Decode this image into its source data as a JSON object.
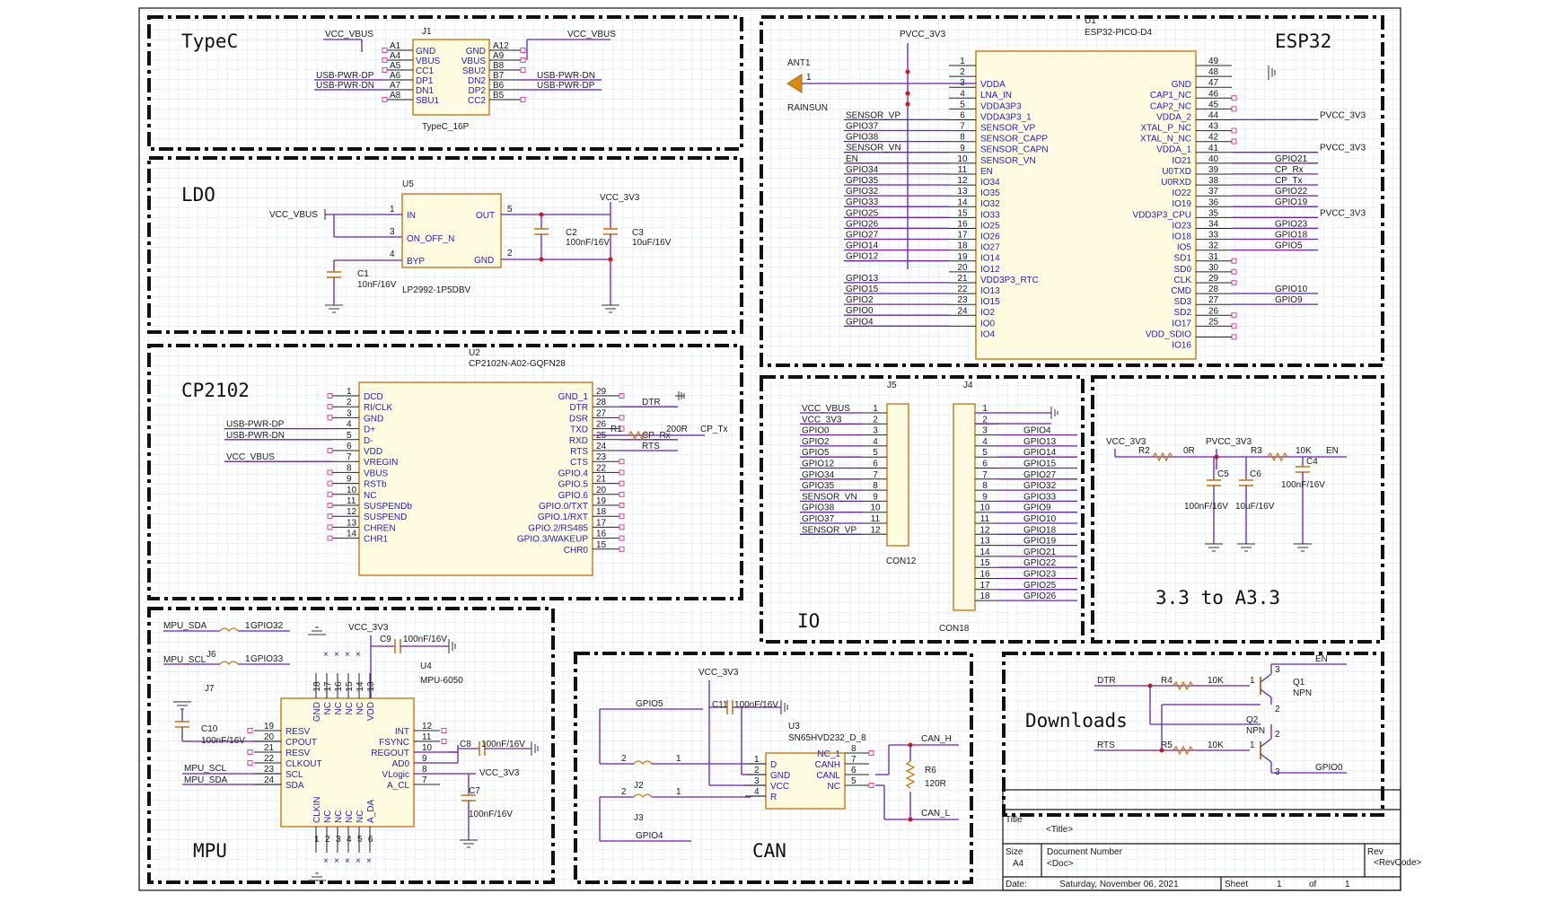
{
  "sections": {
    "typec": "TypeC",
    "ldo": "LDO",
    "cp2102": "CP2102",
    "esp32": "ESP32",
    "io": "IO",
    "mpu": "MPU",
    "can": "CAN",
    "downloads": "Downloads",
    "a33": "3.3 to A3.3"
  },
  "typec": {
    "ref": "J1",
    "part": "TypeC_16P",
    "net_vbus_left": "VCC_VBUS",
    "net_vbus_right": "VCC_VBUS",
    "left_pins": [
      {
        "num": "A1",
        "name": "GND",
        "net": ""
      },
      {
        "num": "A4",
        "name": "VBUS",
        "net": ""
      },
      {
        "num": "A5",
        "name": "CC1",
        "net": ""
      },
      {
        "num": "A6",
        "name": "DP1",
        "net": "USB-PWR-DP"
      },
      {
        "num": "A7",
        "name": "DN1",
        "net": "USB-PWR-DN"
      },
      {
        "num": "A8",
        "name": "SBU1",
        "net": ""
      }
    ],
    "right_pins": [
      {
        "num": "A12",
        "name": "GND",
        "net": ""
      },
      {
        "num": "A9",
        "name": "VBUS",
        "net": ""
      },
      {
        "num": "B8",
        "name": "SBU2",
        "net": ""
      },
      {
        "num": "B7",
        "name": "DN2",
        "net": "USB-PWR-DN"
      },
      {
        "num": "B6",
        "name": "DP2",
        "net": "USB-PWR-DP"
      },
      {
        "num": "B5",
        "name": "CC2",
        "net": ""
      }
    ]
  },
  "ldo": {
    "ref": "U5",
    "part": "LP2992-1P5DBV",
    "in_net": "VCC_VBUS",
    "out_net": "VCC_3V3",
    "pins": [
      {
        "num": "1",
        "name": "IN"
      },
      {
        "num": "3",
        "name": "ON_OFF_N"
      },
      {
        "num": "4",
        "name": "BYP"
      },
      {
        "num": "5",
        "name": "OUT"
      },
      {
        "num": "2",
        "name": "GND"
      }
    ],
    "c1": {
      "ref": "C1",
      "value": "10nF/16V"
    },
    "c2": {
      "ref": "C2",
      "value": "100nF/16V"
    },
    "c3": {
      "ref": "C3",
      "value": "10uF/16V"
    }
  },
  "cp2102": {
    "ref": "U2",
    "part": "CP2102N-A02-GQFN28",
    "left_pins": [
      {
        "num": "1",
        "name": "DCD",
        "net": ""
      },
      {
        "num": "2",
        "name": "RI/CLK",
        "net": ""
      },
      {
        "num": "3",
        "name": "GND",
        "net": ""
      },
      {
        "num": "4",
        "name": "D+",
        "net": "USB-PWR-DP"
      },
      {
        "num": "5",
        "name": "D-",
        "net": "USB-PWR-DN"
      },
      {
        "num": "6",
        "name": "VDD",
        "net": ""
      },
      {
        "num": "7",
        "name": "VREGIN",
        "net": "VCC_VBUS"
      },
      {
        "num": "8",
        "name": "VBUS",
        "net": ""
      },
      {
        "num": "9",
        "name": "RSTb",
        "net": ""
      },
      {
        "num": "10",
        "name": "NC",
        "net": ""
      },
      {
        "num": "11",
        "name": "SUSPENDb",
        "net": ""
      },
      {
        "num": "12",
        "name": "SUSPEND",
        "net": ""
      },
      {
        "num": "13",
        "name": "CHREN",
        "net": ""
      },
      {
        "num": "14",
        "name": "CHR1",
        "net": ""
      }
    ],
    "right_pins": [
      {
        "num": "29",
        "name": "GND_1",
        "net": ""
      },
      {
        "num": "28",
        "name": "DTR",
        "net": "DTR"
      },
      {
        "num": "27",
        "name": "DSR",
        "net": ""
      },
      {
        "num": "26",
        "name": "TXD",
        "net": ""
      },
      {
        "num": "25",
        "name": "RXD",
        "net": "CP_Rx"
      },
      {
        "num": "24",
        "name": "RTS",
        "net": "RTS"
      },
      {
        "num": "23",
        "name": "CTS",
        "net": ""
      },
      {
        "num": "22",
        "name": "GPIO.4",
        "net": ""
      },
      {
        "num": "21",
        "name": "GPIO.5",
        "net": ""
      },
      {
        "num": "20",
        "name": "GPIO.6",
        "net": ""
      },
      {
        "num": "19",
        "name": "GPIO.0/TXT",
        "net": ""
      },
      {
        "num": "18",
        "name": "GPIO.1/RXT",
        "net": ""
      },
      {
        "num": "17",
        "name": "GPIO.2/RS485",
        "net": ""
      },
      {
        "num": "16",
        "name": "GPIO.3/WAKEUP",
        "net": ""
      },
      {
        "num": "15",
        "name": "CHR0",
        "net": ""
      }
    ],
    "r1": {
      "ref": "R1",
      "value": "200R"
    },
    "txd_net": "CP_Tx"
  },
  "esp32": {
    "ref": "U1",
    "part": "ESP32-PICO-D4",
    "supply_net": "PVCC_3V3",
    "antenna": {
      "ref": "ANT1",
      "part": "RAINSUN",
      "pin": "1"
    },
    "left_pins": [
      {
        "num": "1",
        "name": "",
        "net": ""
      },
      {
        "num": "2",
        "name": "VDDA",
        "net": ""
      },
      {
        "num": "3",
        "name": "LNA_IN",
        "net": ""
      },
      {
        "num": "4",
        "name": "VDDA3P3",
        "net": ""
      },
      {
        "num": "5",
        "name": "VDDA3P3_1",
        "net": "SENSOR_VP"
      },
      {
        "num": "6",
        "name": "SENSOR_VP",
        "net": "GPIO37"
      },
      {
        "num": "7",
        "name": "SENSOR_CAPP",
        "net": "GPIO38"
      },
      {
        "num": "8",
        "name": "SENSOR_CAPN",
        "net": "SENSOR_VN"
      },
      {
        "num": "9",
        "name": "SENSOR_VN",
        "net": "EN"
      },
      {
        "num": "10",
        "name": "EN",
        "net": "GPIO34"
      },
      {
        "num": "11",
        "name": "IO34",
        "net": "GPIO35"
      },
      {
        "num": "12",
        "name": "IO35",
        "net": "GPIO32"
      },
      {
        "num": "13",
        "name": "IO32",
        "net": "GPIO33"
      },
      {
        "num": "14",
        "name": "IO33",
        "net": "GPIO25"
      },
      {
        "num": "15",
        "name": "IO25",
        "net": "GPIO26"
      },
      {
        "num": "16",
        "name": "IO26",
        "net": "GPIO27"
      },
      {
        "num": "17",
        "name": "IO27",
        "net": "GPIO14"
      },
      {
        "num": "18",
        "name": "IO14",
        "net": "GPIO12"
      },
      {
        "num": "19",
        "name": "IO12",
        "net": ""
      },
      {
        "num": "20",
        "name": "VDD3P3_RTC",
        "net": "GPIO13"
      },
      {
        "num": "21",
        "name": "IO13",
        "net": "GPIO15"
      },
      {
        "num": "22",
        "name": "IO15",
        "net": "GPIO2"
      },
      {
        "num": "23",
        "name": "IO2",
        "net": "GPIO0"
      },
      {
        "num": "24",
        "name": "IO0",
        "net": "GPIO4"
      },
      {
        "num": "",
        "name": "IO4",
        "net": ""
      }
    ],
    "right_pins": [
      {
        "num": "49",
        "name": "",
        "net": ""
      },
      {
        "num": "48",
        "name": "GND",
        "net": ""
      },
      {
        "num": "47",
        "name": "CAP1_NC",
        "net": ""
      },
      {
        "num": "46",
        "name": "CAP2_NC",
        "net": ""
      },
      {
        "num": "45",
        "name": "VDDA_2",
        "net": "PVCC_3V3"
      },
      {
        "num": "44",
        "name": "XTAL_P_NC",
        "net": ""
      },
      {
        "num": "43",
        "name": "XTAL_N_NC",
        "net": ""
      },
      {
        "num": "42",
        "name": "VDDA_1",
        "net": "PVCC_3V3"
      },
      {
        "num": "41",
        "name": "IO21",
        "net": "GPIO21"
      },
      {
        "num": "40",
        "name": "U0TXD",
        "net": "CP_Rx"
      },
      {
        "num": "39",
        "name": "U0RXD",
        "net": "CP_Tx"
      },
      {
        "num": "38",
        "name": "IO22",
        "net": "GPIO22"
      },
      {
        "num": "37",
        "name": "IO19",
        "net": "GPIO19"
      },
      {
        "num": "36",
        "name": "VDD3P3_CPU",
        "net": "PVCC_3V3"
      },
      {
        "num": "35",
        "name": "IO23",
        "net": "GPIO23"
      },
      {
        "num": "34",
        "name": "IO18",
        "net": "GPIO18"
      },
      {
        "num": "33",
        "name": "IO5",
        "net": "GPIO5"
      },
      {
        "num": "32",
        "name": "SD1",
        "net": ""
      },
      {
        "num": "31",
        "name": "SD0",
        "net": ""
      },
      {
        "num": "30",
        "name": "CLK",
        "net": ""
      },
      {
        "num": "29",
        "name": "CMD",
        "net": "GPIO10"
      },
      {
        "num": "28",
        "name": "SD3",
        "net": "GPIO9"
      },
      {
        "num": "27",
        "name": "SD2",
        "net": ""
      },
      {
        "num": "26",
        "name": "IO17",
        "net": ""
      },
      {
        "num": "25",
        "name": "VDD_SDIO",
        "net": ""
      },
      {
        "num": "",
        "name": "IO16",
        "net": ""
      }
    ]
  },
  "io": {
    "j5": {
      "ref": "J5",
      "part": "CON12",
      "nets": [
        "VCC_VBUS",
        "VCC_3V3",
        "GPIO0",
        "GPIO2",
        "GPIO5",
        "GPIO12",
        "GPIO34",
        "GPIO35",
        "SENSOR_VN",
        "GPIO38",
        "GPIO37",
        "SENSOR_VP"
      ]
    },
    "j4": {
      "ref": "J4",
      "part": "CON18",
      "nets": [
        "",
        "",
        "GPIO4",
        "GPIO13",
        "GPIO14",
        "GPIO15",
        "GPIO27",
        "GPIO32",
        "GPIO33",
        "GPIO9",
        "GPIO10",
        "GPIO18",
        "GPIO19",
        "GPIO21",
        "GPIO22",
        "GPIO23",
        "GPIO25",
        "GPIO26"
      ]
    }
  },
  "a33": {
    "net_in": "VCC_3V3",
    "net_out": "PVCC_3V3",
    "r2": {
      "ref": "R2",
      "value": "0R"
    },
    "r3": {
      "ref": "R3",
      "value": "10K"
    },
    "en_net": "EN",
    "c4": {
      "ref": "C4",
      "value": "100nF/16V"
    },
    "c5": {
      "ref": "C5",
      "value": "100nF/16V"
    },
    "c6": {
      "ref": "C6",
      "value": "10uF/16V"
    }
  },
  "mpu": {
    "ref": "U4",
    "part": "MPU-6050",
    "j6": "J6",
    "j7": "J7",
    "sda_net": "MPU_SDA",
    "scl_net": "MPU_SCL",
    "gpio_sda": "GPIO32",
    "gpio_scl": "GPIO33",
    "pin_one": "1",
    "vcc_net": "VCC_3V3",
    "c9": {
      "ref": "C9",
      "value": "100nF/16V"
    },
    "c10": {
      "ref": "C10",
      "value": "100nF/16V"
    },
    "c8": {
      "ref": "C8",
      "value": "100nF/16V"
    },
    "c7": {
      "ref": "C7",
      "value": "100nF/16V"
    },
    "vlogic_net": "VCC_3V3",
    "left_pins": [
      {
        "num": "19",
        "name": "RESV"
      },
      {
        "num": "20",
        "name": "CPOUT"
      },
      {
        "num": "21",
        "name": "RESV"
      },
      {
        "num": "22",
        "name": "CLKOUT"
      },
      {
        "num": "23",
        "name": "SCL"
      },
      {
        "num": "24",
        "name": "SDA"
      }
    ],
    "right_pins": [
      {
        "num": "12",
        "name": "INT"
      },
      {
        "num": "11",
        "name": "FSYNC"
      },
      {
        "num": "10",
        "name": "REGOUT"
      },
      {
        "num": "9",
        "name": "AD0"
      },
      {
        "num": "8",
        "name": "VLogic"
      },
      {
        "num": "7",
        "name": "A_CL"
      }
    ],
    "top_pins": [
      {
        "num": "18",
        "name": "GND"
      },
      {
        "num": "17",
        "name": "NC"
      },
      {
        "num": "16",
        "name": "NC"
      },
      {
        "num": "15",
        "name": "NC"
      },
      {
        "num": "14",
        "name": "NC"
      },
      {
        "num": "13",
        "name": "VDD"
      }
    ],
    "bottom_pins": [
      {
        "num": "1",
        "name": "CLKIN"
      },
      {
        "num": "2",
        "name": "NC"
      },
      {
        "num": "3",
        "name": "NC"
      },
      {
        "num": "4",
        "name": "NC"
      },
      {
        "num": "5",
        "name": "NC"
      },
      {
        "num": "6",
        "name": "A_DA"
      }
    ]
  },
  "can": {
    "ref": "U3",
    "part": "SN65HVD232_D_8",
    "vcc_net": "VCC_3V3",
    "c11": {
      "ref": "C11",
      "value": "100nF/16V"
    },
    "gpio_tx": "GPIO5",
    "gpio_rx": "GPIO4",
    "j2": "J2",
    "j3": "J3",
    "jumper_pin_a": "2",
    "jumper_pin_b": "1",
    "r6": {
      "ref": "R6",
      "value": "120R"
    },
    "canh": "CAN_H",
    "canl": "CAN_L",
    "left_pins": [
      {
        "num": "1",
        "name": "D"
      },
      {
        "num": "2",
        "name": "GND"
      },
      {
        "num": "3",
        "name": "VCC"
      },
      {
        "num": "4",
        "name": "R"
      }
    ],
    "right_pins": [
      {
        "num": "8",
        "name": "NC_1"
      },
      {
        "num": "7",
        "name": "CANH"
      },
      {
        "num": "6",
        "name": "CANL"
      },
      {
        "num": "5",
        "name": "NC"
      }
    ]
  },
  "downloads": {
    "dtr": "DTR",
    "rts": "RTS",
    "r4": {
      "ref": "R4",
      "value": "10K"
    },
    "r5": {
      "ref": "R5",
      "value": "10K"
    },
    "q1": {
      "ref": "Q1",
      "type": "NPN"
    },
    "q2": {
      "ref": "Q2",
      "type": "NPN"
    },
    "en_net": "EN",
    "gpio0_net": "GPIO0",
    "pin1": "1",
    "pin2": "2",
    "pin3": "3"
  },
  "title_block": {
    "title_label": "Title",
    "title_value": "<Title>",
    "size_label": "Size",
    "size_value": "A4",
    "docnum_label": "Document Number",
    "docnum_value": "<Doc>",
    "rev_label": "Rev",
    "rev_value": "<RevCode>",
    "date_label": "Date:",
    "date_value": "Saturday, November 06, 2021",
    "sheet_label": "Sheet",
    "sheet_num": "1",
    "of_label": "of",
    "sheet_total": "1"
  }
}
